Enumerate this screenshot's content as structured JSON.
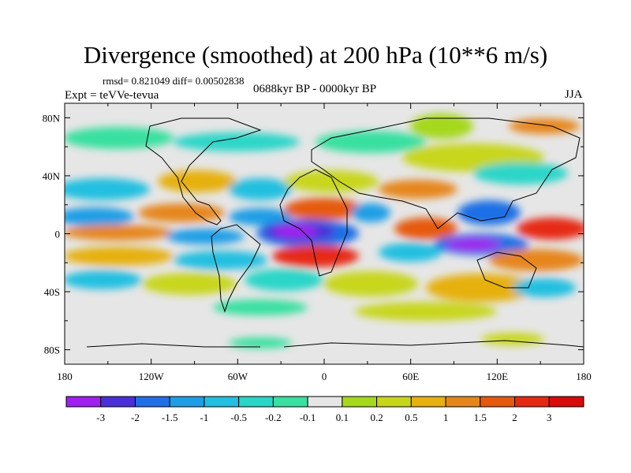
{
  "header": {
    "title": "Divergence (smoothed) at 200 hPa (10**6 m/s)",
    "stats": "rmsd= 0.821049 diff= 0.00502838",
    "experiment": "Expt = teVVe-tevua",
    "period": "0688kyr BP - 0000kyr BP",
    "season": "JJA"
  },
  "map": {
    "projection": "cylindrical equidistant",
    "x_ticks": [
      "180",
      "120W",
      "60W",
      "0",
      "60E",
      "120E",
      "180"
    ],
    "y_ticks": [
      "80N",
      "40N",
      "0",
      "40S",
      "80S"
    ],
    "x_range": [
      -180,
      180
    ],
    "y_range": [
      -90,
      90
    ],
    "land_outline_color": "#000000",
    "neutral_color": "#e6e6e6"
  },
  "colorbar": {
    "labels": [
      "-3",
      "-2",
      "-1.5",
      "-1",
      "-0.5",
      "-0.2",
      "-0.1",
      "0.1",
      "0.2",
      "0.5",
      "1",
      "1.5",
      "2",
      "3"
    ],
    "colors": [
      "#a020f0",
      "#4b2fd8",
      "#1f6fe6",
      "#1e9ee6",
      "#22bfe0",
      "#29d6c8",
      "#39e0a0",
      "#e6e6e6",
      "#a6d81e",
      "#c8d61a",
      "#e6b00e",
      "#e6861a",
      "#e65a0e",
      "#e62a12",
      "#d80a0a"
    ]
  }
}
